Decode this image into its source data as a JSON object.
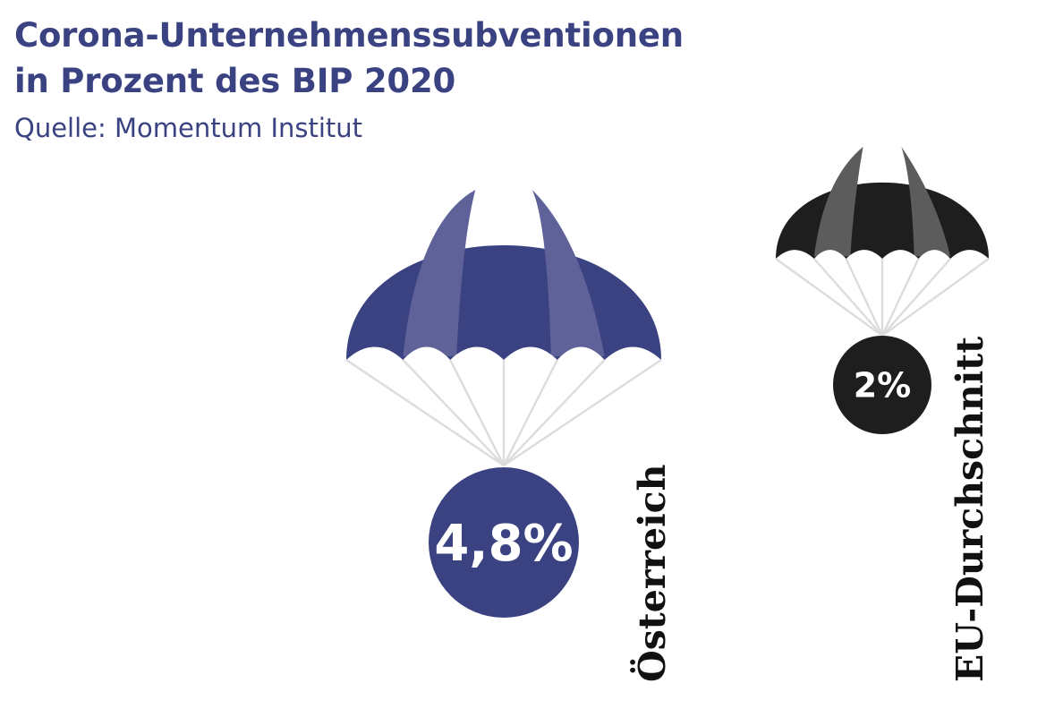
{
  "title_line1": "Corona-Unternehmenssubventionen",
  "title_line2": "in Prozent des BIP 2020",
  "source": "Quelle: Momentum Institut",
  "colors": {
    "oesterreich_dark": "#3a4282",
    "oesterreich_light": "#5f6299",
    "eu_dark": "#1e1e1e",
    "eu_light": "#5c5c5c",
    "lines": "#dcdcdc",
    "title": "#3a4282"
  },
  "chart_data": {
    "type": "bar",
    "title": "Corona-Unternehmenssubventionen in Prozent des BIP 2020",
    "categories": [
      "Österreich",
      "EU-Durchschnitt"
    ],
    "values": [
      4.8,
      2
    ],
    "value_labels": [
      "4,8%",
      "2%"
    ],
    "unit": "% des BIP"
  }
}
